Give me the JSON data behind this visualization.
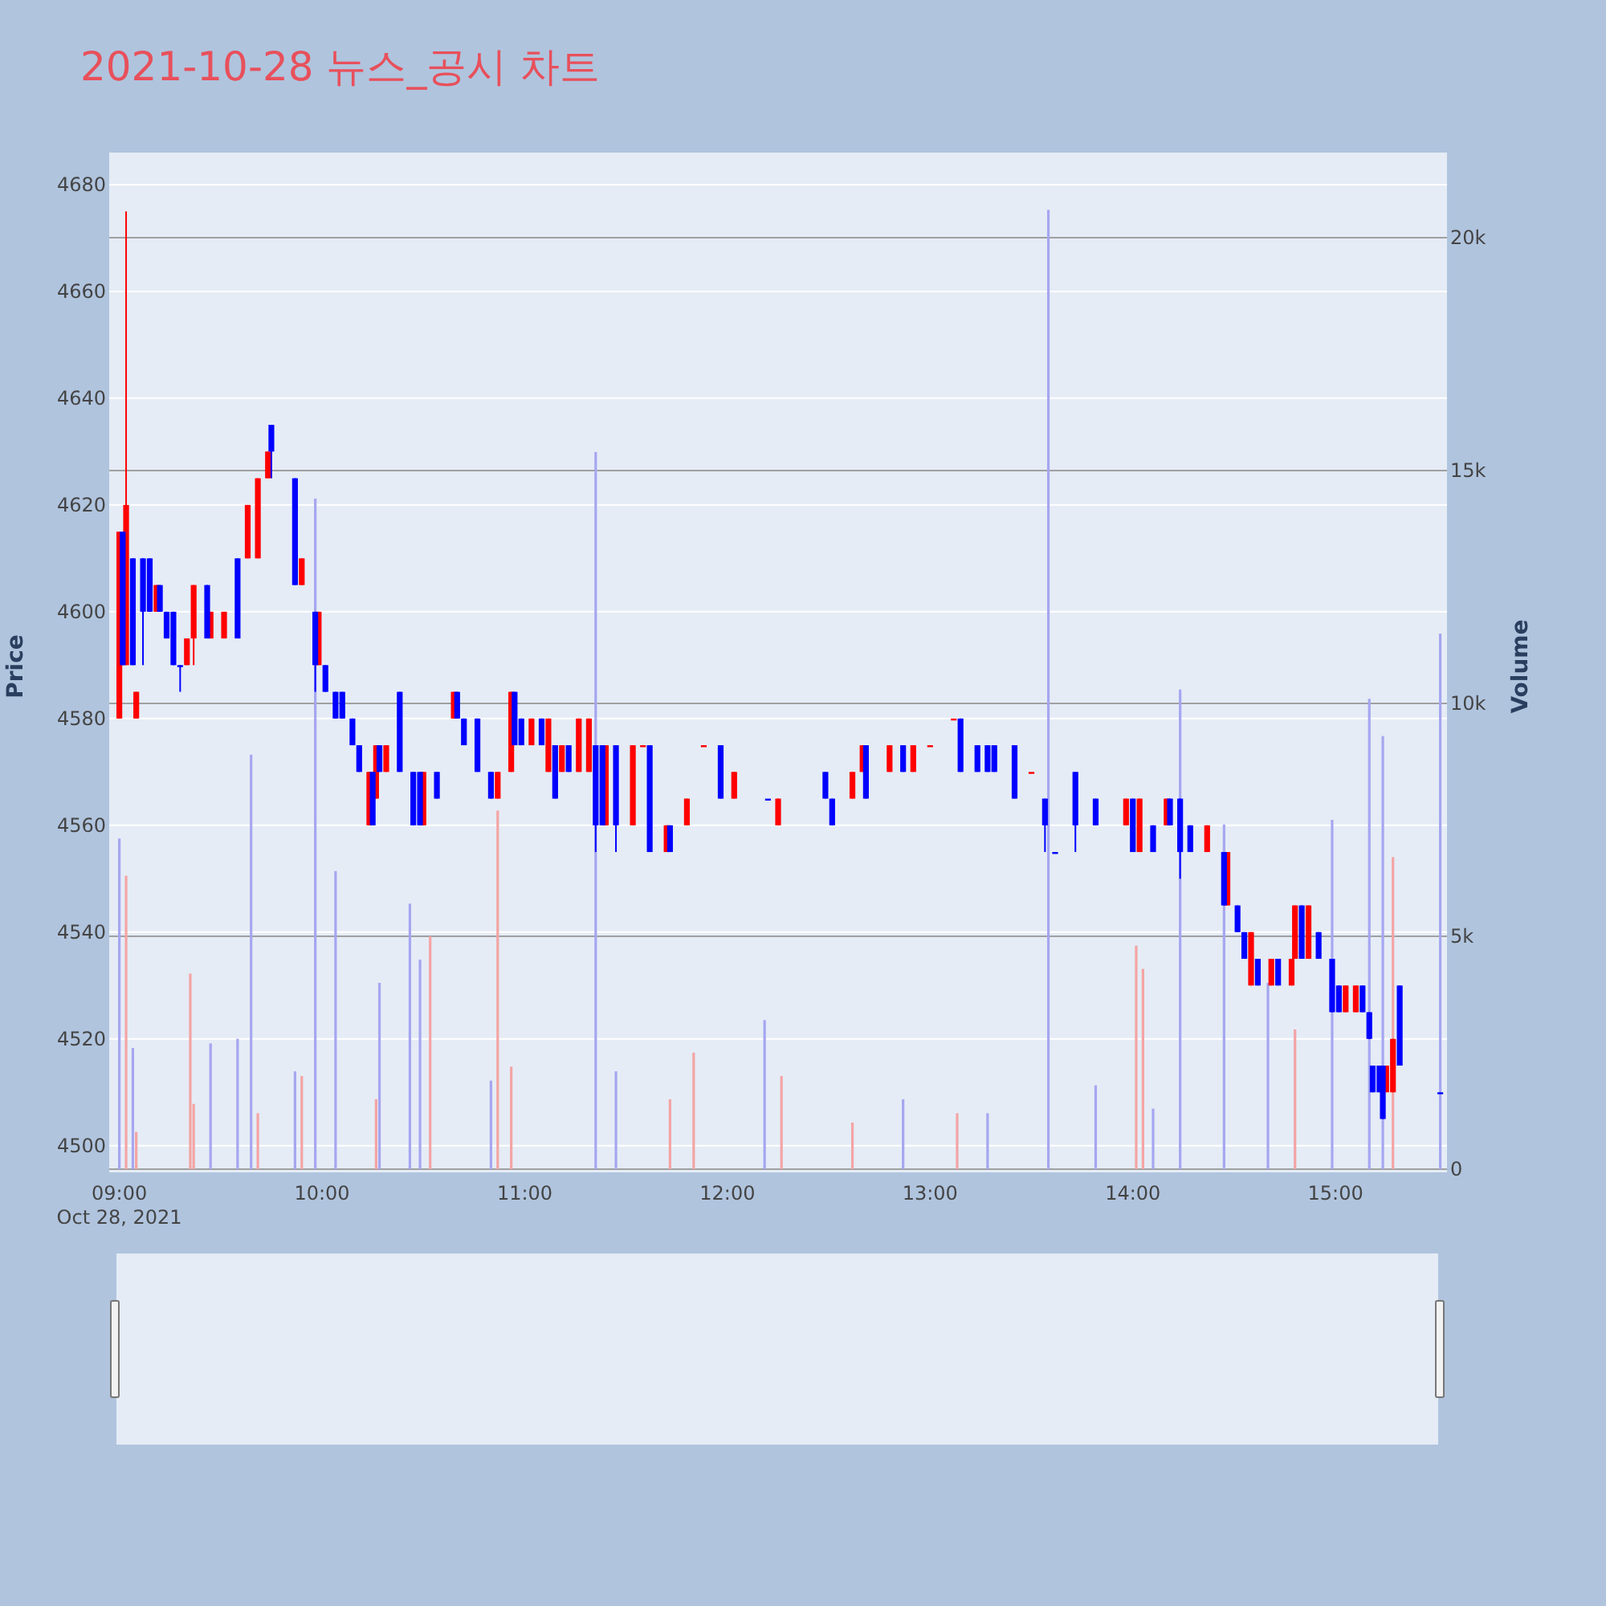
{
  "chart_data": {
    "type": "candlestick",
    "title": "2021-10-28 뉴스_공시 차트",
    "ylabel": "Price",
    "y2label": "Volume",
    "annotations": [
      "Oct 28, 2021"
    ],
    "xlim": [
      "2021-10-28T08:57",
      "2021-10-28T15:33"
    ],
    "xticks": [
      {
        "value": "2021-10-28T09:00",
        "label": "09:00"
      },
      {
        "value": "2021-10-28T10:00",
        "label": "10:00"
      },
      {
        "value": "2021-10-28T11:00",
        "label": "11:00"
      },
      {
        "value": "2021-10-28T12:00",
        "label": "12:00"
      },
      {
        "value": "2021-10-28T13:00",
        "label": "13:00"
      },
      {
        "value": "2021-10-28T14:00",
        "label": "14:00"
      },
      {
        "value": "2021-10-28T15:00",
        "label": "15:00"
      }
    ],
    "ylim": [
      4495,
      4686
    ],
    "yticks": [
      4500,
      4520,
      4540,
      4560,
      4580,
      4600,
      4620,
      4640,
      4660,
      4680
    ],
    "y2lim": [
      -70,
      21830
    ],
    "y2ticks": [
      0,
      {
        "value": 5000,
        "label": "5k"
      },
      {
        "value": 10000,
        "label": "10k"
      },
      {
        "value": 15000,
        "label": "15k"
      },
      {
        "value": 20000,
        "label": "20k"
      }
    ],
    "grid": "y",
    "series": [
      {
        "type": "candlestick",
        "color": "#ff0000",
        "x": [
          "2021-10-28T09:00",
          "2021-10-28T09:02",
          "2021-10-28T09:05",
          "2021-10-28T09:11",
          "2021-10-28T09:20",
          "2021-10-28T09:22",
          "2021-10-28T09:27",
          "2021-10-28T09:31",
          "2021-10-28T09:38",
          "2021-10-28T09:41",
          "2021-10-28T09:44",
          "2021-10-28T09:54",
          "2021-10-28T09:59",
          "2021-10-28T10:14",
          "2021-10-28T10:16",
          "2021-10-28T10:19",
          "2021-10-28T10:30",
          "2021-10-28T10:39",
          "2021-10-28T10:52",
          "2021-10-28T10:56",
          "2021-10-28T11:02",
          "2021-10-28T11:07",
          "2021-10-28T11:11",
          "2021-10-28T11:16",
          "2021-10-28T11:19",
          "2021-10-28T11:24",
          "2021-10-28T11:32",
          "2021-10-28T11:35",
          "2021-10-28T11:42",
          "2021-10-28T11:48",
          "2021-10-28T11:53",
          "2021-10-28T12:02",
          "2021-10-28T12:15",
          "2021-10-28T12:37",
          "2021-10-28T12:40",
          "2021-10-28T12:48",
          "2021-10-28T12:55",
          "2021-10-28T13:00",
          "2021-10-28T13:07",
          "2021-10-28T13:30",
          "2021-10-28T13:58",
          "2021-10-28T14:02",
          "2021-10-28T14:10",
          "2021-10-28T14:22",
          "2021-10-28T14:28",
          "2021-10-28T14:35",
          "2021-10-28T14:41",
          "2021-10-28T14:47",
          "2021-10-28T14:48",
          "2021-10-28T14:52",
          "2021-10-28T15:03",
          "2021-10-28T15:06",
          "2021-10-28T15:15",
          "2021-10-28T15:17"
        ],
        "ohlc": [
          [
            4580,
            4615,
            4580,
            4615
          ],
          [
            4590,
            4675,
            4590,
            4620
          ],
          [
            4580,
            4585,
            4580,
            4585
          ],
          [
            4600,
            4605,
            4600,
            4605
          ],
          [
            4590,
            4595,
            4590,
            4595
          ],
          [
            4595,
            4605,
            4590,
            4605
          ],
          [
            4595,
            4600,
            4595,
            4600
          ],
          [
            4595,
            4600,
            4595,
            4600
          ],
          [
            4610,
            4620,
            4610,
            4620
          ],
          [
            4610,
            4625,
            4610,
            4625
          ],
          [
            4625,
            4630,
            4625,
            4630
          ],
          [
            4605,
            4610,
            4605,
            4610
          ],
          [
            4590,
            4600,
            4590,
            4600
          ],
          [
            4560,
            4570,
            4560,
            4570
          ],
          [
            4565,
            4575,
            4565,
            4575
          ],
          [
            4570,
            4575,
            4570,
            4575
          ],
          [
            4560,
            4570,
            4560,
            4570
          ],
          [
            4580,
            4585,
            4580,
            4585
          ],
          [
            4565,
            4570,
            4565,
            4570
          ],
          [
            4570,
            4585,
            4570,
            4585
          ],
          [
            4575,
            4580,
            4575,
            4580
          ],
          [
            4570,
            4580,
            4570,
            4580
          ],
          [
            4570,
            4575,
            4570,
            4575
          ],
          [
            4570,
            4580,
            4570,
            4580
          ],
          [
            4570,
            4580,
            4570,
            4580
          ],
          [
            4560,
            4575,
            4560,
            4575
          ],
          [
            4560,
            4575,
            4560,
            4575
          ],
          [
            4575,
            4575,
            4575,
            4575
          ],
          [
            4555,
            4560,
            4555,
            4560
          ],
          [
            4560,
            4565,
            4560,
            4565
          ],
          [
            4575,
            4575,
            4575,
            4575
          ],
          [
            4565,
            4570,
            4565,
            4570
          ],
          [
            4560,
            4565,
            4560,
            4565
          ],
          [
            4565,
            4570,
            4565,
            4570
          ],
          [
            4570,
            4575,
            4570,
            4575
          ],
          [
            4570,
            4575,
            4570,
            4575
          ],
          [
            4570,
            4575,
            4570,
            4575
          ],
          [
            4575,
            4575,
            4575,
            4575
          ],
          [
            4580,
            4580,
            4580,
            4580
          ],
          [
            4570,
            4570,
            4570,
            4570
          ],
          [
            4560,
            4565,
            4560,
            4565
          ],
          [
            4555,
            4565,
            4555,
            4565
          ],
          [
            4560,
            4565,
            4560,
            4565
          ],
          [
            4555,
            4560,
            4555,
            4560
          ],
          [
            4545,
            4555,
            4545,
            4555
          ],
          [
            4530,
            4540,
            4530,
            4540
          ],
          [
            4530,
            4535,
            4530,
            4535
          ],
          [
            4530,
            4535,
            4530,
            4535
          ],
          [
            4535,
            4545,
            4535,
            4545
          ],
          [
            4535,
            4545,
            4535,
            4545
          ],
          [
            4525,
            4530,
            4525,
            4530
          ],
          [
            4525,
            4530,
            4525,
            4530
          ],
          [
            4510,
            4515,
            4510,
            4515
          ],
          [
            4510,
            4520,
            4510,
            4520
          ]
        ]
      },
      {
        "type": "candlestick",
        "color": "#0000ff",
        "x": [
          "2021-10-28T09:01",
          "2021-10-28T09:04",
          "2021-10-28T09:07",
          "2021-10-28T09:09",
          "2021-10-28T09:12",
          "2021-10-28T09:14",
          "2021-10-28T09:16",
          "2021-10-28T09:18",
          "2021-10-28T09:26",
          "2021-10-28T09:35",
          "2021-10-28T09:45",
          "2021-10-28T09:52",
          "2021-10-28T09:58",
          "2021-10-28T10:01",
          "2021-10-28T10:04",
          "2021-10-28T10:06",
          "2021-10-28T10:09",
          "2021-10-28T10:11",
          "2021-10-28T10:15",
          "2021-10-28T10:17",
          "2021-10-28T10:23",
          "2021-10-28T10:27",
          "2021-10-28T10:29",
          "2021-10-28T10:34",
          "2021-10-28T10:40",
          "2021-10-28T10:42",
          "2021-10-28T10:46",
          "2021-10-28T10:50",
          "2021-10-28T10:57",
          "2021-10-28T10:59",
          "2021-10-28T11:05",
          "2021-10-28T11:09",
          "2021-10-28T11:13",
          "2021-10-28T11:21",
          "2021-10-28T11:23",
          "2021-10-28T11:27",
          "2021-10-28T11:37",
          "2021-10-28T11:43",
          "2021-10-28T11:58",
          "2021-10-28T12:12",
          "2021-10-28T12:29",
          "2021-10-28T12:31",
          "2021-10-28T12:41",
          "2021-10-28T12:52",
          "2021-10-28T13:09",
          "2021-10-28T13:14",
          "2021-10-28T13:17",
          "2021-10-28T13:19",
          "2021-10-28T13:25",
          "2021-10-28T13:34",
          "2021-10-28T13:37",
          "2021-10-28T13:43",
          "2021-10-28T13:49",
          "2021-10-28T14:00",
          "2021-10-28T14:06",
          "2021-10-28T14:11",
          "2021-10-28T14:14",
          "2021-10-28T14:17",
          "2021-10-28T14:27",
          "2021-10-28T14:31",
          "2021-10-28T14:33",
          "2021-10-28T14:37",
          "2021-10-28T14:43",
          "2021-10-28T14:50",
          "2021-10-28T14:55",
          "2021-10-28T14:59",
          "2021-10-28T15:01",
          "2021-10-28T15:08",
          "2021-10-28T15:10",
          "2021-10-28T15:11",
          "2021-10-28T15:13",
          "2021-10-28T15:14",
          "2021-10-28T15:19",
          "2021-10-28T15:31"
        ],
        "ohlc": [
          [
            4615,
            4615,
            4590,
            4590
          ],
          [
            4610,
            4610,
            4590,
            4590
          ],
          [
            4610,
            4610,
            4590,
            4600
          ],
          [
            4610,
            4610,
            4600,
            4600
          ],
          [
            4605,
            4605,
            4600,
            4600
          ],
          [
            4600,
            4600,
            4595,
            4595
          ],
          [
            4600,
            4600,
            4590,
            4590
          ],
          [
            4590,
            4590,
            4585,
            4590
          ],
          [
            4605,
            4605,
            4595,
            4595
          ],
          [
            4610,
            4610,
            4595,
            4595
          ],
          [
            4635,
            4635,
            4625,
            4630
          ],
          [
            4625,
            4625,
            4605,
            4605
          ],
          [
            4600,
            4600,
            4585,
            4590
          ],
          [
            4590,
            4590,
            4585,
            4585
          ],
          [
            4585,
            4585,
            4580,
            4580
          ],
          [
            4585,
            4585,
            4580,
            4580
          ],
          [
            4580,
            4580,
            4575,
            4575
          ],
          [
            4575,
            4575,
            4570,
            4570
          ],
          [
            4570,
            4570,
            4560,
            4560
          ],
          [
            4575,
            4575,
            4570,
            4570
          ],
          [
            4585,
            4585,
            4570,
            4570
          ],
          [
            4570,
            4570,
            4560,
            4560
          ],
          [
            4570,
            4570,
            4560,
            4560
          ],
          [
            4570,
            4570,
            4565,
            4565
          ],
          [
            4585,
            4585,
            4580,
            4580
          ],
          [
            4580,
            4580,
            4575,
            4575
          ],
          [
            4580,
            4580,
            4570,
            4570
          ],
          [
            4570,
            4570,
            4565,
            4565
          ],
          [
            4585,
            4585,
            4575,
            4575
          ],
          [
            4580,
            4580,
            4575,
            4575
          ],
          [
            4580,
            4580,
            4575,
            4575
          ],
          [
            4575,
            4575,
            4565,
            4565
          ],
          [
            4575,
            4575,
            4570,
            4570
          ],
          [
            4575,
            4575,
            4555,
            4560
          ],
          [
            4575,
            4575,
            4560,
            4560
          ],
          [
            4575,
            4575,
            4555,
            4560
          ],
          [
            4575,
            4575,
            4555,
            4555
          ],
          [
            4560,
            4560,
            4555,
            4555
          ],
          [
            4575,
            4575,
            4565,
            4565
          ],
          [
            4565,
            4565,
            4565,
            4565
          ],
          [
            4570,
            4570,
            4565,
            4565
          ],
          [
            4565,
            4565,
            4560,
            4560
          ],
          [
            4575,
            4575,
            4565,
            4565
          ],
          [
            4575,
            4575,
            4570,
            4570
          ],
          [
            4580,
            4580,
            4570,
            4570
          ],
          [
            4575,
            4575,
            4570,
            4570
          ],
          [
            4575,
            4575,
            4570,
            4570
          ],
          [
            4575,
            4575,
            4570,
            4570
          ],
          [
            4575,
            4575,
            4565,
            4565
          ],
          [
            4565,
            4565,
            4555,
            4560
          ],
          [
            4555,
            4555,
            4555,
            4555
          ],
          [
            4570,
            4570,
            4555,
            4560
          ],
          [
            4565,
            4565,
            4560,
            4560
          ],
          [
            4565,
            4565,
            4555,
            4555
          ],
          [
            4560,
            4560,
            4555,
            4555
          ],
          [
            4565,
            4565,
            4560,
            4560
          ],
          [
            4565,
            4565,
            4550,
            4555
          ],
          [
            4560,
            4560,
            4555,
            4555
          ],
          [
            4555,
            4555,
            4545,
            4545
          ],
          [
            4545,
            4545,
            4540,
            4540
          ],
          [
            4540,
            4540,
            4535,
            4535
          ],
          [
            4535,
            4535,
            4530,
            4530
          ],
          [
            4535,
            4535,
            4530,
            4530
          ],
          [
            4545,
            4545,
            4535,
            4535
          ],
          [
            4540,
            4540,
            4535,
            4535
          ],
          [
            4535,
            4535,
            4525,
            4525
          ],
          [
            4530,
            4530,
            4525,
            4525
          ],
          [
            4530,
            4530,
            4525,
            4525
          ],
          [
            4525,
            4525,
            4520,
            4520
          ],
          [
            4515,
            4515,
            4510,
            4510
          ],
          [
            4515,
            4515,
            4510,
            4510
          ],
          [
            4515,
            4515,
            4505,
            4505
          ],
          [
            4530,
            4530,
            4515,
            4515
          ],
          [
            4510,
            4510,
            4510,
            4510
          ]
        ]
      },
      {
        "type": "bar",
        "axis": "y2",
        "color": "#f4a4a4",
        "x": [
          "2021-10-28T09:02",
          "2021-10-28T09:05",
          "2021-10-28T09:21",
          "2021-10-28T09:22",
          "2021-10-28T09:41",
          "2021-10-28T09:54",
          "2021-10-28T10:16",
          "2021-10-28T10:32",
          "2021-10-28T10:52",
          "2021-10-28T10:56",
          "2021-10-28T11:43",
          "2021-10-28T11:50",
          "2021-10-28T12:16",
          "2021-10-28T12:37",
          "2021-10-28T13:08",
          "2021-10-28T14:01",
          "2021-10-28T14:03",
          "2021-10-28T14:48",
          "2021-10-28T15:17"
        ],
        "values": [
          6300,
          800,
          4200,
          1400,
          1200,
          2000,
          1500,
          5000,
          7700,
          2200,
          1500,
          2500,
          2000,
          1000,
          1200,
          4800,
          4300,
          3000,
          6700
        ]
      },
      {
        "type": "bar",
        "axis": "y2",
        "color": "#a6a6f0",
        "x": [
          "2021-10-28T09:00",
          "2021-10-28T09:04",
          "2021-10-28T09:27",
          "2021-10-28T09:35",
          "2021-10-28T09:39",
          "2021-10-28T09:52",
          "2021-10-28T09:58",
          "2021-10-28T10:04",
          "2021-10-28T10:17",
          "2021-10-28T10:26",
          "2021-10-28T10:29",
          "2021-10-28T10:50",
          "2021-10-28T11:21",
          "2021-10-28T11:27",
          "2021-10-28T12:11",
          "2021-10-28T12:52",
          "2021-10-28T13:17",
          "2021-10-28T13:35",
          "2021-10-28T13:49",
          "2021-10-28T14:06",
          "2021-10-28T14:14",
          "2021-10-28T14:27",
          "2021-10-28T14:40",
          "2021-10-28T14:59",
          "2021-10-28T15:10",
          "2021-10-28T15:14",
          "2021-10-28T15:31"
        ],
        "values": [
          7100,
          2600,
          2700,
          2800,
          8900,
          2100,
          14400,
          6400,
          4000,
          5700,
          4500,
          1900,
          15400,
          2100,
          3200,
          1500,
          1200,
          20600,
          1800,
          1300,
          10300,
          7400,
          4000,
          7500,
          10100,
          9300,
          11500
        ]
      }
    ]
  }
}
